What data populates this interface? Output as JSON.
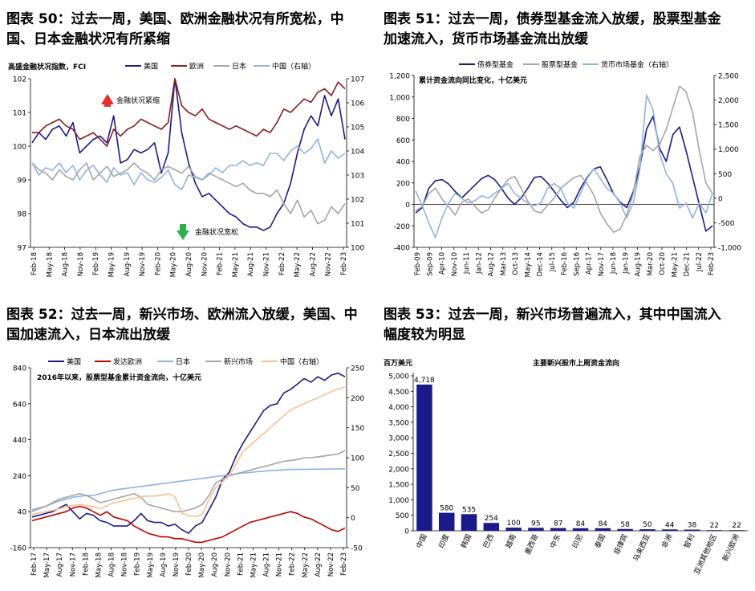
{
  "panels": {
    "p50": {
      "title_line1": "图表 50：过去一周，美国、欧洲金融状况有所宽松，中",
      "title_line2": "国、日本金融状况有所紧缩"
    },
    "p51": {
      "title_line1": "图表 51：过去一周，债券型基金流入放缓，股票型基金",
      "title_line2": "加速流入，货币市场基金流出放缓"
    },
    "p52": {
      "title_line1": "图表 52：过去一周，新兴市场、欧洲流入放缓，美国、中",
      "title_line2": "国加速流入，日本流出放缓"
    },
    "p53": {
      "title_line1": "图表 53：过去一周，新兴市场普遍流入，其中中国流入",
      "title_line2": "幅度较为明显"
    }
  },
  "chart_data": [
    {
      "id": "p50",
      "type": "line",
      "subtitle": "高盛金融状况指数，FCI",
      "annotations": [
        "金融状况紧缩",
        "金融状况宽松"
      ],
      "x_ticks": [
        "Feb-18",
        "May-18",
        "Aug-18",
        "Nov-18",
        "Feb-19",
        "May-19",
        "Aug-19",
        "Nov-19",
        "Feb-20",
        "May-20",
        "Aug-20",
        "Nov-20",
        "Feb-21",
        "May-21",
        "Aug-21",
        "Nov-21",
        "Feb-22",
        "May-22",
        "Aug-22",
        "Nov-22",
        "Feb-23"
      ],
      "y_left": {
        "min": 97,
        "max": 102,
        "ticks": [
          97,
          98,
          99,
          100,
          101,
          102
        ]
      },
      "y_right": {
        "min": 100,
        "max": 107,
        "ticks": [
          100,
          101,
          102,
          103,
          104,
          105,
          106,
          107
        ]
      },
      "series": [
        {
          "name": "美国",
          "color": "#1a1a8c",
          "axis": "left",
          "values": [
            100.1,
            100.4,
            100.2,
            100.5,
            100.6,
            100.3,
            100.7,
            99.8,
            100.0,
            100.2,
            100.3,
            100.1,
            100.9,
            99.5,
            99.6,
            99.9,
            99.8,
            99.9,
            100.1,
            99.2,
            99.8,
            102.0,
            100.4,
            99.5,
            98.9,
            98.5,
            98.6,
            98.4,
            98.2,
            98.0,
            97.9,
            97.7,
            97.6,
            97.6,
            97.5,
            97.6,
            98.0,
            98.3,
            98.9,
            99.8,
            100.5,
            100.9,
            100.6,
            101.5,
            100.9,
            101.4,
            100.2
          ]
        },
        {
          "name": "欧洲",
          "color": "#8b1a1a",
          "axis": "left",
          "values": [
            100.4,
            100.4,
            100.6,
            100.7,
            100.8,
            100.6,
            100.5,
            100.2,
            100.3,
            100.4,
            100.2,
            100.0,
            100.5,
            100.3,
            100.5,
            100.6,
            100.8,
            100.7,
            100.6,
            100.5,
            100.7,
            102.0,
            101.2,
            101.0,
            100.9,
            101.1,
            100.8,
            100.7,
            100.6,
            100.5,
            100.6,
            100.5,
            100.4,
            100.3,
            100.5,
            100.4,
            100.7,
            101.1,
            101.0,
            101.2,
            101.4,
            101.3,
            101.6,
            101.7,
            101.5,
            101.9,
            101.7
          ]
        },
        {
          "name": "日本",
          "color": "#a6a6a6",
          "axis": "left",
          "values": [
            99.5,
            99.3,
            99.2,
            99.0,
            99.3,
            99.1,
            99.0,
            99.3,
            99.5,
            99.0,
            99.2,
            99.4,
            99.1,
            99.2,
            99.3,
            99.5,
            99.3,
            99.2,
            99.0,
            99.3,
            99.4,
            99.3,
            99.2,
            99.4,
            99.1,
            99.0,
            99.2,
            99.1,
            99.0,
            98.9,
            98.8,
            98.9,
            98.7,
            98.6,
            98.6,
            98.5,
            98.7,
            98.3,
            98.0,
            98.4,
            97.9,
            98.1,
            97.7,
            97.8,
            98.2,
            98.0,
            98.3
          ]
        },
        {
          "name": "中国（右轴）",
          "color": "#8db4e2",
          "axis": "right",
          "values": [
            103.5,
            103.0,
            103.3,
            103.2,
            103.5,
            103.1,
            103.4,
            102.8,
            103.2,
            103.4,
            103.0,
            102.7,
            103.3,
            103.0,
            103.1,
            102.6,
            103.1,
            102.8,
            102.7,
            102.9,
            103.2,
            102.6,
            102.4,
            103.0,
            102.9,
            102.8,
            103.0,
            103.3,
            103.1,
            103.4,
            103.4,
            103.6,
            103.4,
            103.5,
            103.4,
            103.9,
            103.9,
            103.6,
            104.0,
            104.2,
            103.9,
            104.1,
            104.5,
            103.5,
            104.0,
            103.7,
            103.9
          ]
        }
      ]
    },
    {
      "id": "p51",
      "type": "line",
      "subtitle": "累计资金流向同比变化，十亿美元",
      "x_ticks": [
        "Feb-09",
        "Sep-09",
        "Apr-10",
        "Nov-10",
        "Jun-11",
        "Jan-12",
        "Aug-12",
        "Mar-13",
        "Oct-13",
        "May-14",
        "Dec-14",
        "Jul-15",
        "Feb-16",
        "Sep-16",
        "Apr-17",
        "Nov-17",
        "Jun-18",
        "Jan-19",
        "Aug-19",
        "Mar-20",
        "Oct-20",
        "May-21",
        "Dec-21",
        "Jul-22",
        "Feb-23"
      ],
      "y_left": {
        "min": -400,
        "max": 1200,
        "ticks": [
          -400,
          -200,
          0,
          200,
          400,
          600,
          800,
          1000,
          1200
        ]
      },
      "y_right": {
        "min": -1000,
        "max": 2500,
        "ticks": [
          -1000,
          -500,
          0,
          500,
          1000,
          1500,
          2000,
          2500
        ]
      },
      "series": [
        {
          "name": "债券型基金",
          "color": "#1a1a8c",
          "axis": "left",
          "values": [
            -80,
            -30,
            150,
            220,
            230,
            190,
            120,
            60,
            120,
            180,
            240,
            270,
            230,
            150,
            60,
            0,
            60,
            150,
            250,
            260,
            200,
            120,
            40,
            -30,
            20,
            150,
            250,
            330,
            350,
            230,
            100,
            20,
            -30,
            120,
            350,
            700,
            820,
            520,
            400,
            650,
            720,
            500,
            250,
            0,
            -250,
            -200
          ]
        },
        {
          "name": "股票型基金",
          "color": "#a6a6a6",
          "axis": "left",
          "values": [
            -60,
            -20,
            100,
            150,
            50,
            -20,
            -100,
            20,
            50,
            -20,
            -80,
            -50,
            60,
            150,
            230,
            260,
            150,
            30,
            -60,
            -80,
            -10,
            60,
            150,
            200,
            250,
            270,
            190,
            90,
            -80,
            -180,
            -260,
            -230,
            -100,
            100,
            450,
            550,
            500,
            560,
            700,
            900,
            1100,
            1050,
            850,
            500,
            200,
            100
          ]
        },
        {
          "name": "货币市场基金（右轴）",
          "color": "#8db4e2",
          "axis": "right",
          "values": [
            150,
            -150,
            -500,
            -800,
            -400,
            -100,
            100,
            0,
            -100,
            -50,
            50,
            0,
            100,
            200,
            300,
            100,
            0,
            -100,
            -150,
            -100,
            200,
            300,
            200,
            -100,
            -200,
            100,
            400,
            600,
            400,
            200,
            100,
            -100,
            -400,
            -100,
            600,
            2100,
            1800,
            900,
            500,
            300,
            -200,
            -100,
            -400,
            -100,
            -300,
            100
          ]
        }
      ]
    },
    {
      "id": "p52",
      "type": "line",
      "subtitle": "2016年以来，股票型基金累计资金流向，十亿美元",
      "x_ticks": [
        "Feb-17",
        "May-17",
        "Aug-17",
        "Nov-17",
        "Feb-18",
        "May-18",
        "Aug-18",
        "Nov-18",
        "Feb-19",
        "May-19",
        "Aug-19",
        "Nov-19",
        "Feb-20",
        "May-20",
        "Aug-20",
        "Nov-20",
        "Feb-21",
        "May-21",
        "Aug-21",
        "Nov-21",
        "Feb-22",
        "May-22",
        "Aug-22",
        "Nov-22",
        "Feb-23"
      ],
      "y_left": {
        "min": -160,
        "max": 840,
        "ticks": [
          -160,
          40,
          240,
          440,
          640,
          840
        ]
      },
      "y_right": {
        "min": -50,
        "max": 250,
        "ticks": [
          -50,
          0,
          50,
          100,
          150,
          200,
          250
        ]
      },
      "series": [
        {
          "name": "美国",
          "color": "#1a1a8c",
          "axis": "left",
          "values": [
            10,
            20,
            30,
            40,
            60,
            80,
            40,
            0,
            30,
            20,
            -10,
            -20,
            -40,
            -40,
            -40,
            -10,
            30,
            -10,
            -20,
            -20,
            -40,
            -30,
            -60,
            -80,
            -40,
            -20,
            50,
            120,
            220,
            260,
            350,
            420,
            480,
            540,
            600,
            630,
            640,
            700,
            720,
            750,
            780,
            760,
            790,
            770,
            800,
            810,
            790
          ]
        },
        {
          "name": "发达欧洲",
          "color": "#c00000",
          "axis": "left",
          "values": [
            -10,
            0,
            10,
            20,
            30,
            40,
            60,
            70,
            60,
            40,
            20,
            40,
            10,
            0,
            -10,
            -40,
            -60,
            -80,
            -90,
            -100,
            -100,
            -110,
            -110,
            -120,
            -130,
            -130,
            -120,
            -110,
            -100,
            -80,
            -60,
            -40,
            -20,
            -10,
            0,
            10,
            20,
            30,
            40,
            30,
            10,
            0,
            -20,
            -40,
            -60,
            -70,
            -50
          ]
        },
        {
          "name": "日本",
          "color": "#8db4e2",
          "axis": "left",
          "values": [
            40,
            55,
            70,
            85,
            100,
            110,
            120,
            125,
            130,
            130,
            140,
            150,
            160,
            165,
            170,
            175,
            180,
            185,
            190,
            195,
            200,
            205,
            210,
            215,
            220,
            225,
            230,
            235,
            240,
            245,
            250,
            255,
            258,
            262,
            265,
            268,
            270,
            272,
            275,
            275,
            275,
            276,
            276,
            277,
            277,
            278,
            278
          ]
        },
        {
          "name": "新兴市场",
          "color": "#a6a6a6",
          "axis": "left",
          "values": [
            50,
            60,
            70,
            90,
            110,
            120,
            130,
            140,
            130,
            110,
            90,
            100,
            110,
            120,
            130,
            140,
            120,
            80,
            70,
            60,
            50,
            40,
            40,
            50,
            60,
            80,
            130,
            200,
            220,
            240,
            250,
            260,
            270,
            280,
            290,
            300,
            310,
            320,
            325,
            330,
            340,
            340,
            345,
            350,
            355,
            360,
            380
          ]
        },
        {
          "name": "中国（右轴）",
          "color": "#fac090",
          "axis": "right",
          "values": [
            5,
            8,
            10,
            12,
            15,
            18,
            20,
            22,
            20,
            18,
            15,
            20,
            25,
            27,
            30,
            32,
            35,
            36,
            36,
            37,
            40,
            35,
            8,
            3,
            2,
            5,
            30,
            50,
            60,
            70,
            90,
            110,
            120,
            130,
            140,
            150,
            160,
            170,
            180,
            185,
            190,
            195,
            200,
            205,
            210,
            215,
            218
          ]
        }
      ]
    },
    {
      "id": "p53",
      "type": "bar",
      "title": "主要新兴股市上周资金流向",
      "ylabel": "百万美元",
      "ylim": [
        0,
        5000
      ],
      "y_ticks": [
        0,
        500,
        1000,
        1500,
        2000,
        2500,
        3000,
        3500,
        4000,
        4500,
        5000
      ],
      "categories": [
        "中国",
        "印度",
        "韩国",
        "巴西",
        "越南",
        "墨西哥",
        "中东",
        "印尼",
        "泰国",
        "菲律宾",
        "马来西亚",
        "非洲",
        "智利",
        "亚洲其他地区",
        "新兴欧洲"
      ],
      "values": [
        4718,
        580,
        535,
        254,
        100,
        95,
        87,
        84,
        84,
        58,
        50,
        44,
        38,
        22,
        22
      ],
      "value_labels": [
        "4,718",
        "580",
        "535",
        "254",
        "100",
        "95",
        "87",
        "84",
        "84",
        "58",
        "50",
        "44",
        "38",
        "22",
        "22"
      ],
      "y_tick_labels": [
        "0",
        "500",
        "1,000",
        "1,500",
        "2,000",
        "2,500",
        "3,000",
        "3,500",
        "4,000",
        "4,500",
        "5,000"
      ],
      "color": "#1a1a8c"
    }
  ]
}
